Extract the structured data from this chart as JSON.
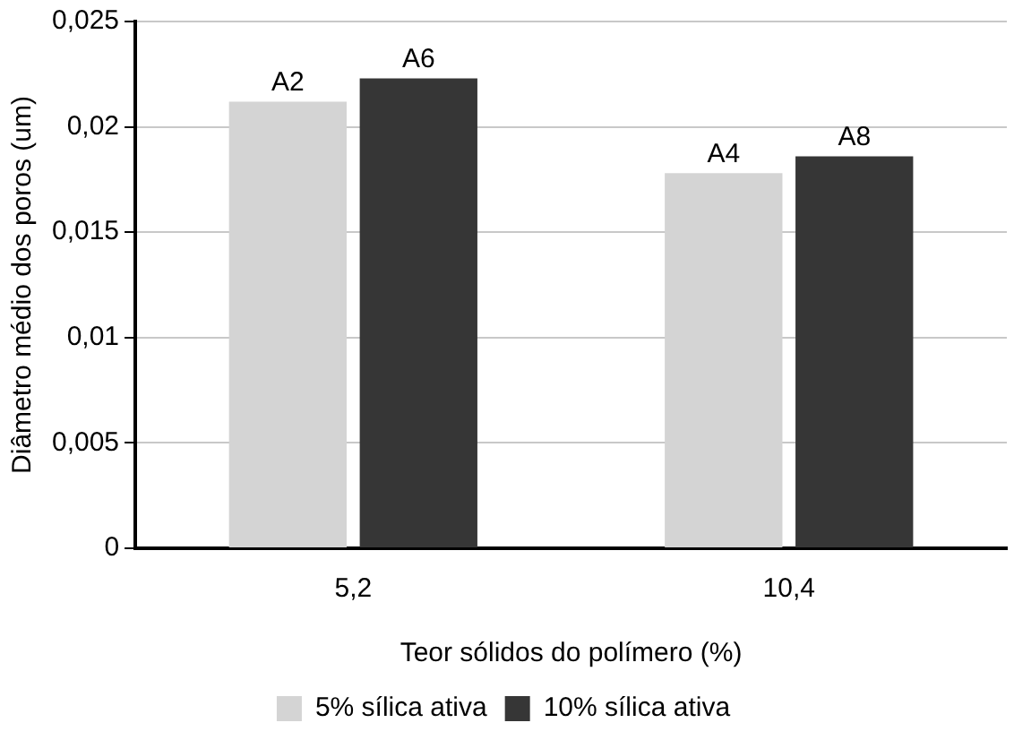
{
  "chart_data": {
    "type": "bar",
    "xlabel": "Teor sólidos do polímero (%)",
    "ylabel": "Diâmetro médio dos poros (um)",
    "categories": [
      "5,2",
      "10,4"
    ],
    "series": [
      {
        "name": "5% sílica ativa",
        "color": "#d4d4d4",
        "values": [
          0.0212,
          0.0178
        ],
        "value_labels": [
          "A2",
          "A4"
        ]
      },
      {
        "name": "10% sílica ativa",
        "color": "#363636",
        "values": [
          0.0223,
          0.0186
        ],
        "value_labels": [
          "A6",
          "A8"
        ]
      }
    ],
    "ylim": [
      0,
      0.025
    ],
    "yticks": [
      {
        "value": 0,
        "label": "0"
      },
      {
        "value": 0.005,
        "label": "0,005"
      },
      {
        "value": 0.01,
        "label": "0,01"
      },
      {
        "value": 0.015,
        "label": "0,015"
      },
      {
        "value": 0.02,
        "label": "0,02"
      },
      {
        "value": 0.025,
        "label": "0,025"
      }
    ],
    "grid": "y",
    "legend": "bottom"
  }
}
